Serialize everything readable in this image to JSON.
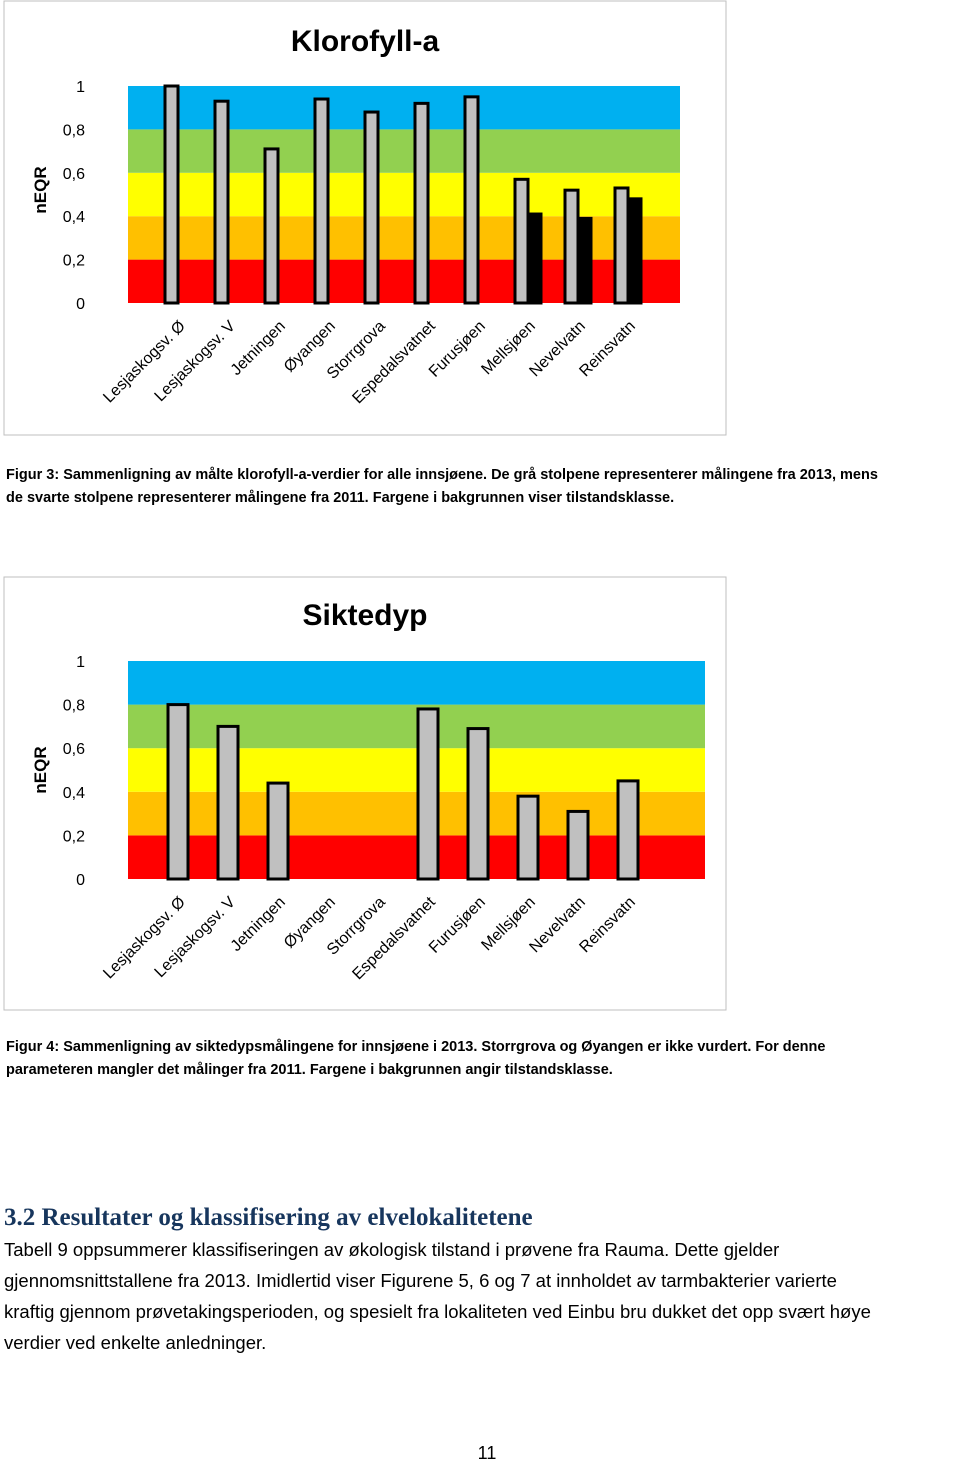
{
  "chart_data": [
    {
      "type": "bar",
      "title": "Klorofyll-a",
      "y_label": "nEQR",
      "categories": [
        "Lesjaskogsv. Ø",
        "Lesjaskogsv. V",
        "Jetningen",
        "Øyangen",
        "Storrgrova",
        "Espedalsvatnet",
        "Furusjøen",
        "Mellsjøen",
        "Nevelvatn",
        "Reinsvatn"
      ],
      "series": [
        {
          "color": "#c0c0c0",
          "values": [
            1.0,
            0.93,
            0.71,
            0.94,
            0.88,
            0.92,
            0.95,
            0.57,
            0.52,
            0.53
          ]
        },
        {
          "color": "#000000",
          "values": [
            null,
            null,
            null,
            null,
            null,
            null,
            null,
            0.41,
            0.39,
            0.48
          ]
        }
      ],
      "ylim": [
        0,
        1
      ],
      "yticks": [
        0,
        {
          "value": 0.2,
          "label": "0,2"
        },
        {
          "value": 0.4,
          "label": "0,4"
        },
        {
          "value": 0.6,
          "label": "0,6"
        },
        {
          "value": 0.8,
          "label": "0,8"
        },
        1
      ],
      "class_bands": [
        {
          "range": [
            0,
            0.2
          ],
          "color": "#ff0000"
        },
        {
          "range": [
            0.2,
            0.4
          ],
          "color": "#ffc000"
        },
        {
          "range": [
            0.4,
            0.6
          ],
          "color": "#ffff00"
        },
        {
          "range": [
            0.6,
            0.8
          ],
          "color": "#92d050"
        },
        {
          "range": [
            0.8,
            1
          ],
          "color": "#00b0f0"
        }
      ]
    },
    {
      "type": "bar",
      "title": "Siktedyp",
      "y_label": "nEQR",
      "categories": [
        "Lesjaskogsv. Ø",
        "Lesjaskogsv. V",
        "Jetningen",
        "Øyangen",
        "Storrgrova",
        "Espedalsvatnet",
        "Furusjøen",
        "Mellsjøen",
        "Nevelvatn",
        "Reinsvatn"
      ],
      "series": [
        {
          "color": "#c0c0c0",
          "values": [
            0.8,
            0.7,
            0.44,
            null,
            null,
            0.78,
            0.69,
            0.38,
            0.31,
            0.45
          ]
        }
      ],
      "ylim": [
        0,
        1
      ],
      "yticks": [
        0,
        {
          "value": 0.2,
          "label": "0,2"
        },
        {
          "value": 0.4,
          "label": "0,4"
        },
        {
          "value": 0.6,
          "label": "0,6"
        },
        {
          "value": 0.8,
          "label": "0,8"
        },
        1
      ],
      "class_bands": [
        {
          "range": [
            0,
            0.2
          ],
          "color": "#ff0000"
        },
        {
          "range": [
            0.2,
            0.4
          ],
          "color": "#ffc000"
        },
        {
          "range": [
            0.4,
            0.6
          ],
          "color": "#ffff00"
        },
        {
          "range": [
            0.6,
            0.8
          ],
          "color": "#92d050"
        },
        {
          "range": [
            0.8,
            1
          ],
          "color": "#00b0f0"
        }
      ]
    }
  ],
  "captions": [
    [
      "Figur 3: Sammenligning av målte klorofyll-a-verdier for alle innsjøene. De grå stolpene representerer målingene fra 2013, mens",
      "de svarte stolpene representerer målingene fra 2011. Fargene i bakgrunnen viser tilstandsklasse."
    ],
    [
      "Figur 4: Sammenligning av siktedypsmålingene for innsjøene i 2013. Storrgrova og Øyangen er ikke vurdert.  For denne",
      "parameteren mangler det målinger fra 2011. Fargene i bakgrunnen angir tilstandsklasse."
    ]
  ],
  "section": {
    "heading": "3.2 Resultater og klassifisering av elvelokalitetene",
    "paragraph": [
      "Tabell 9 oppsummerer klassifiseringen av økologisk tilstand i prøvene fra Rauma. Dette gjelder",
      "gjennomsnittstallene fra 2013. Imidlertid viser Figurene 5, 6 og 7 at innholdet av tarmbakterier varierte",
      "kraftig gjennom prøvetakingsperioden, og spesielt fra lokaliteten ved Einbu bru dukket det opp svært høye",
      "verdier ved enkelte anledninger."
    ]
  },
  "page_number": "11"
}
